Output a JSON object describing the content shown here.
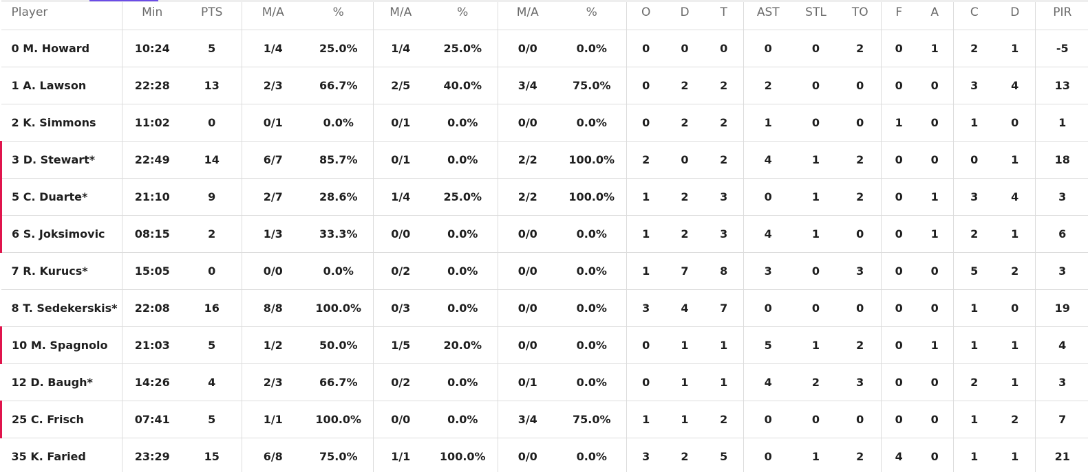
{
  "table": {
    "headers": [
      "Player",
      "Min",
      "PTS",
      "M/A",
      "%",
      "M/A",
      "%",
      "M/A",
      "%",
      "O",
      "D",
      "T",
      "AST",
      "STL",
      "TO",
      "F",
      "A",
      "C",
      "D",
      "PIR"
    ],
    "rows": [
      [
        "0 M. Howard",
        "10:24",
        "5",
        "1/4",
        "25.0%",
        "1/4",
        "25.0%",
        "0/0",
        "0.0%",
        "0",
        "0",
        "0",
        "0",
        "0",
        "2",
        "0",
        "1",
        "2",
        "1",
        "-5"
      ],
      [
        "1 A. Lawson",
        "22:28",
        "13",
        "2/3",
        "66.7%",
        "2/5",
        "40.0%",
        "3/4",
        "75.0%",
        "0",
        "2",
        "2",
        "2",
        "0",
        "0",
        "0",
        "0",
        "3",
        "4",
        "13"
      ],
      [
        "2 K. Simmons",
        "11:02",
        "0",
        "0/1",
        "0.0%",
        "0/1",
        "0.0%",
        "0/0",
        "0.0%",
        "0",
        "2",
        "2",
        "1",
        "0",
        "0",
        "1",
        "0",
        "1",
        "0",
        "1"
      ],
      [
        "3 D. Stewart*",
        "22:49",
        "14",
        "6/7",
        "85.7%",
        "0/1",
        "0.0%",
        "2/2",
        "100.0%",
        "2",
        "0",
        "2",
        "4",
        "1",
        "2",
        "0",
        "0",
        "0",
        "1",
        "18"
      ],
      [
        "5 C. Duarte*",
        "21:10",
        "9",
        "2/7",
        "28.6%",
        "1/4",
        "25.0%",
        "2/2",
        "100.0%",
        "1",
        "2",
        "3",
        "0",
        "1",
        "2",
        "0",
        "1",
        "3",
        "4",
        "3"
      ],
      [
        "6 S. Joksimovic",
        "08:15",
        "2",
        "1/3",
        "33.3%",
        "0/0",
        "0.0%",
        "0/0",
        "0.0%",
        "1",
        "2",
        "3",
        "4",
        "1",
        "0",
        "0",
        "1",
        "2",
        "1",
        "6"
      ],
      [
        "7 R. Kurucs*",
        "15:05",
        "0",
        "0/0",
        "0.0%",
        "0/2",
        "0.0%",
        "0/0",
        "0.0%",
        "1",
        "7",
        "8",
        "3",
        "0",
        "3",
        "0",
        "0",
        "5",
        "2",
        "3"
      ],
      [
        "8 T. Sedekerskis*",
        "22:08",
        "16",
        "8/8",
        "100.0%",
        "0/3",
        "0.0%",
        "0/0",
        "0.0%",
        "3",
        "4",
        "7",
        "0",
        "0",
        "0",
        "0",
        "0",
        "1",
        "0",
        "19"
      ],
      [
        "10 M. Spagnolo",
        "21:03",
        "5",
        "1/2",
        "50.0%",
        "1/5",
        "20.0%",
        "0/0",
        "0.0%",
        "0",
        "1",
        "1",
        "5",
        "1",
        "2",
        "0",
        "1",
        "1",
        "1",
        "4"
      ],
      [
        "12 D. Baugh*",
        "14:26",
        "4",
        "2/3",
        "66.7%",
        "0/2",
        "0.0%",
        "0/1",
        "0.0%",
        "0",
        "1",
        "1",
        "4",
        "2",
        "3",
        "0",
        "0",
        "2",
        "1",
        "3"
      ],
      [
        "25 C. Frisch",
        "07:41",
        "5",
        "1/1",
        "100.0%",
        "0/0",
        "0.0%",
        "3/4",
        "75.0%",
        "1",
        "1",
        "2",
        "0",
        "0",
        "0",
        "0",
        "0",
        "1",
        "2",
        "7"
      ],
      [
        "35 K. Faried",
        "23:29",
        "15",
        "6/8",
        "75.0%",
        "1/1",
        "100.0%",
        "0/0",
        "0.0%",
        "3",
        "2",
        "5",
        "0",
        "1",
        "2",
        "4",
        "0",
        "1",
        "1",
        "21"
      ]
    ]
  }
}
